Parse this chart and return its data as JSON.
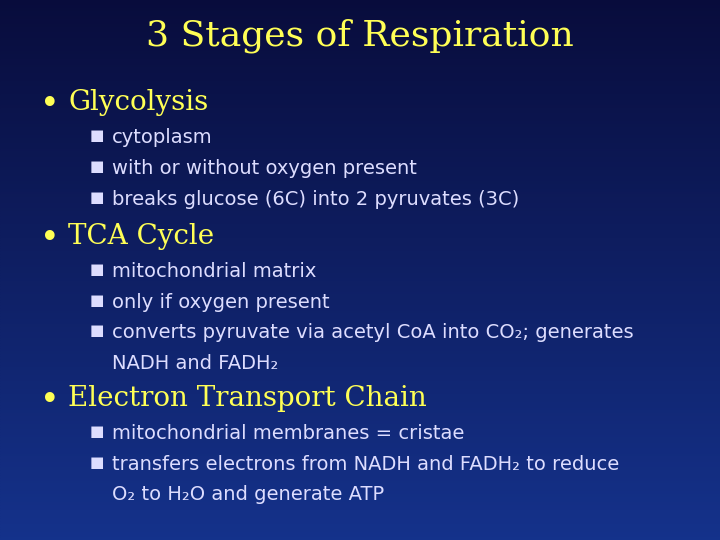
{
  "title": "3 Stages of Respiration",
  "title_color": "#FFFF55",
  "title_fontsize": 26,
  "bg_color": "#0d1a5c",
  "bullet_color": "#FFFF55",
  "sub_color": "#DDDDFF",
  "bullet_fontsize": 20,
  "sub_fontsize": 14,
  "bullets": [
    {
      "text": "Glycolysis",
      "subs": [
        "cytoplasm",
        "with or without oxygen present",
        "breaks glucose (6C) into 2 pyruvates (3C)"
      ]
    },
    {
      "text": "TCA Cycle",
      "subs": [
        "mitochondrial matrix",
        "only if oxygen present",
        "converts pyruvate via acetyl CoA into CO₂; generates\nNADH and FADH₂"
      ]
    },
    {
      "text": "Electron Transport Chain",
      "subs": [
        "mitochondrial membranes = cristae",
        "transfers electrons from NADH and FADH₂ to reduce\nO₂ to H₂O and generate ATP"
      ]
    }
  ]
}
